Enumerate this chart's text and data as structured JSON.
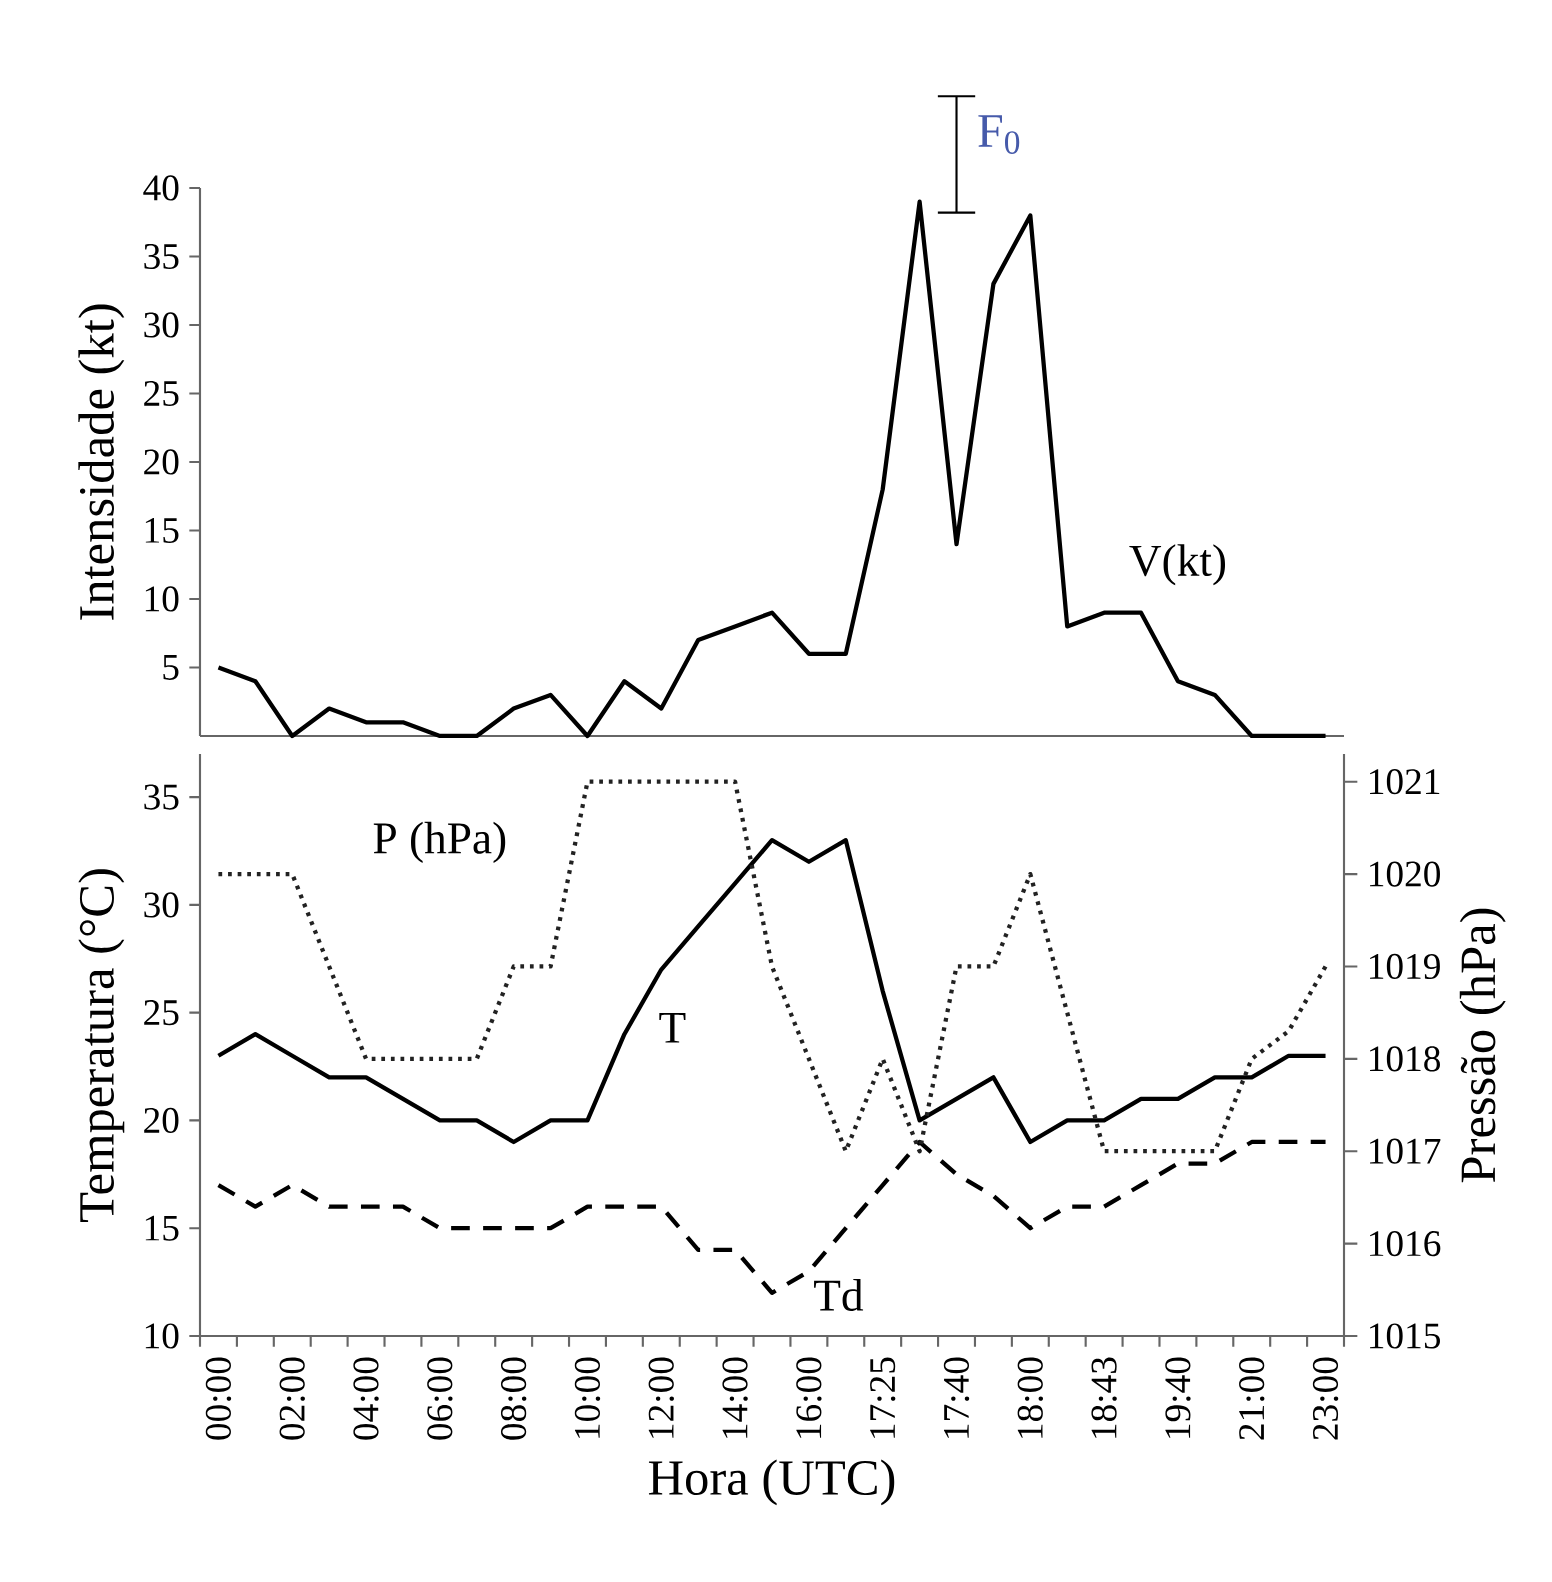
{
  "chart_data": [
    {
      "type": "line",
      "ylabel": "Intensidade (kt)",
      "categories": [
        null,
        null,
        null,
        null,
        null,
        null,
        null,
        null,
        null,
        null,
        null,
        null,
        null,
        null,
        null,
        null,
        null,
        null,
        null,
        null,
        null,
        null,
        null,
        null,
        null,
        null,
        null,
        null,
        null,
        null,
        null
      ],
      "series": [
        {
          "name": "V(kt)",
          "color": "#000000",
          "values": [
            5,
            4,
            0,
            2,
            1,
            1,
            0,
            0,
            2,
            3,
            0,
            4,
            2,
            7,
            8,
            9,
            6,
            6,
            18,
            39,
            14,
            33,
            38,
            8,
            9,
            9,
            4,
            3,
            0,
            0,
            0
          ]
        }
      ],
      "ylim": [
        0,
        40
      ],
      "yticks": [
        5,
        10,
        15,
        20,
        25,
        30,
        35,
        40
      ],
      "tick_labels": "y",
      "marker": "none",
      "line_style": "solid",
      "annotations": [
        "F$_{0}$"
      ]
    },
    {
      "type": "line",
      "xlabel": "Hora (UTC)",
      "ylabel": "Temperatura (°C)",
      "y2label": "Pressão (hPa)",
      "categories": [
        "00:00",
        null,
        "02:00",
        null,
        "04:00",
        null,
        "06:00",
        null,
        "08:00",
        null,
        "10:00",
        null,
        "12:00",
        null,
        "14:00",
        null,
        "16:00",
        null,
        "17:25",
        null,
        "17:40",
        null,
        "18:00",
        null,
        "18:43",
        null,
        "19:40",
        null,
        "21:00",
        null,
        "23:00"
      ],
      "series": [
        {
          "name": "T",
          "color": "#000000",
          "line_style": "solid",
          "values": [
            23,
            24,
            23,
            22,
            22,
            21,
            20,
            20,
            19,
            20,
            20,
            24,
            27,
            29,
            31,
            33,
            32,
            33,
            26,
            20,
            21,
            22,
            19,
            20,
            20,
            21,
            21,
            22,
            22,
            23,
            23
          ]
        },
        {
          "name": "Td",
          "color": "#000000",
          "line_style": "dashed",
          "values": [
            17,
            16,
            17,
            16,
            16,
            16,
            15,
            15,
            15,
            15,
            16,
            16,
            16,
            14,
            14,
            12,
            13,
            15,
            17,
            19,
            17.5,
            16.5,
            15,
            16,
            16,
            17,
            18,
            18,
            19,
            19,
            19
          ]
        },
        {
          "name": "P (hPa)",
          "color": "#222222",
          "line_style": "dotted",
          "axis": "y2",
          "values": [
            1020,
            1020,
            1020,
            1019,
            1018,
            1018,
            1018,
            1018,
            1019,
            1019,
            1021,
            1021,
            1021,
            1021,
            1021,
            1019,
            1018,
            1017,
            1018,
            1017,
            1019,
            1019,
            1020,
            1018.5,
            1017,
            1017,
            1017,
            1017,
            1018,
            1018.3,
            1019
          ]
        }
      ],
      "ylim": [
        10,
        37
      ],
      "yticks": [
        10,
        15,
        20,
        25,
        30,
        35
      ],
      "y2lim": [
        1015,
        1021.3
      ],
      "y2ticks": [
        1015,
        1016,
        1017,
        1018,
        1019,
        1020,
        1021
      ],
      "marker": "none"
    }
  ]
}
